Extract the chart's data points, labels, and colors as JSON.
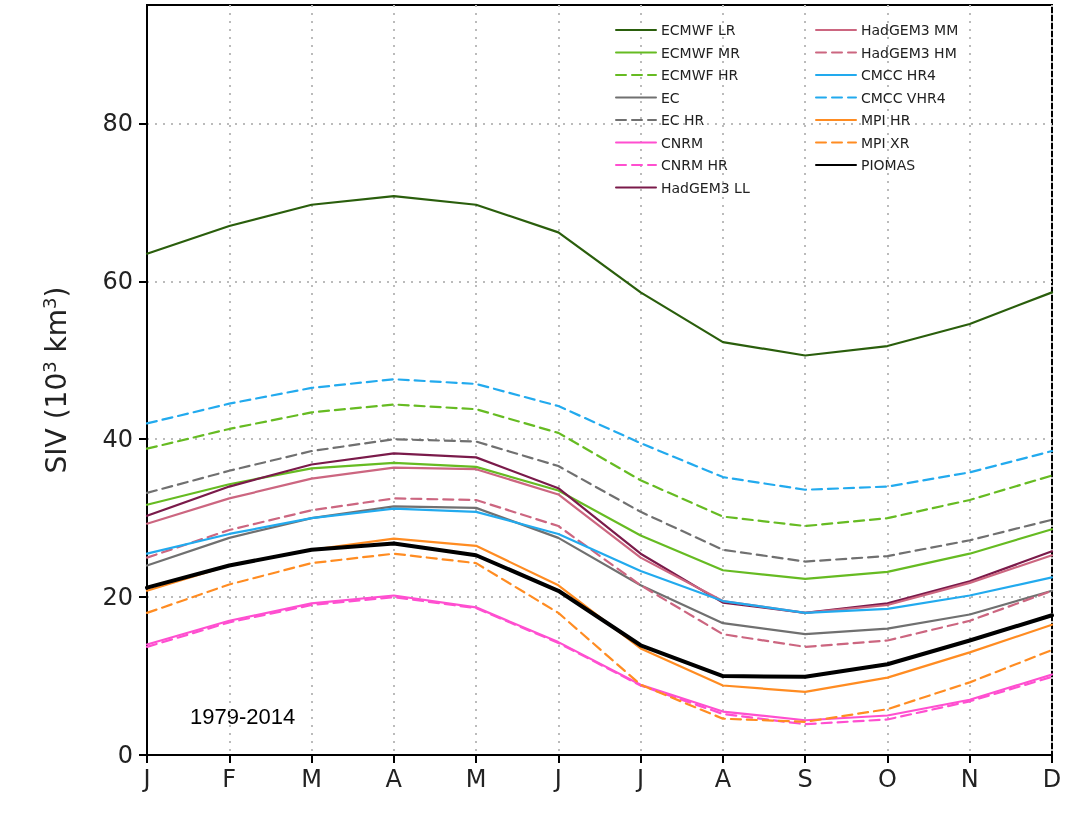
{
  "chart_data": {
    "type": "line",
    "ylabel": "SIV (10$^{3}$ km$^{3}$)",
    "categories": [
      "J",
      "F",
      "M",
      "A",
      "M",
      "J",
      "J",
      "A",
      "S",
      "O",
      "N",
      "D"
    ],
    "ylim": [
      0,
      95
    ],
    "yticks": [
      0,
      20,
      40,
      60,
      80
    ],
    "grid": true,
    "legend": "top right",
    "marker": "none",
    "annotations": [
      "1979-2014"
    ],
    "series": [
      {
        "name": "ECMWF LR",
        "color": "#2a5e0c",
        "line_style": "solid",
        "values": [
          63.5,
          67,
          69.7,
          70.8,
          69.7,
          66.2,
          58.6,
          52.3,
          50.6,
          51.8,
          54.6,
          58.6
        ]
      },
      {
        "name": "ECMWF MR",
        "color": "#66bb22",
        "line_style": "solid",
        "values": [
          31.7,
          34.3,
          36.3,
          37,
          36.5,
          33.5,
          27.8,
          23.4,
          22.3,
          23.2,
          25.5,
          28.6
        ]
      },
      {
        "name": "ECMWF HR",
        "color": "#66bb22",
        "line_style": "dashed",
        "values": [
          38.8,
          41.3,
          43.4,
          44.4,
          43.8,
          40.8,
          34.8,
          30.2,
          29,
          30,
          32.3,
          35.4
        ]
      },
      {
        "name": "EC",
        "color": "#707070",
        "line_style": "solid",
        "values": [
          24,
          27.5,
          30,
          31.5,
          31.3,
          27.5,
          21.5,
          16.7,
          15.3,
          16,
          17.8,
          20.8
        ]
      },
      {
        "name": "EC HR",
        "color": "#707070",
        "line_style": "dashed",
        "values": [
          33.2,
          36,
          38.5,
          40,
          39.7,
          36.6,
          30.8,
          26,
          24.5,
          25.2,
          27.2,
          29.8
        ]
      },
      {
        "name": "CNRM",
        "color": "#ff4fd0",
        "line_style": "solid",
        "values": [
          14,
          17,
          19.2,
          20.2,
          18.7,
          14.3,
          8.9,
          5.5,
          4.4,
          5,
          7,
          10.2
        ]
      },
      {
        "name": "CNRM HR",
        "color": "#ff4fd0",
        "line_style": "dashed",
        "values": [
          13.7,
          16.8,
          19,
          20,
          18.6,
          14.2,
          8.8,
          5.2,
          3.9,
          4.5,
          6.8,
          9.9
        ]
      },
      {
        "name": "HadGEM3 LL",
        "color": "#7a1a4a",
        "line_style": "solid",
        "values": [
          30.3,
          34,
          36.8,
          38.2,
          37.7,
          33.8,
          25.5,
          19.3,
          18,
          19.2,
          22,
          25.8
        ]
      },
      {
        "name": "HadGEM3 MM",
        "color": "#cc6680",
        "line_style": "solid",
        "values": [
          29.3,
          32.5,
          35,
          36.4,
          36.2,
          33,
          25,
          19.5,
          18,
          19,
          21.8,
          25.3
        ]
      },
      {
        "name": "HadGEM3 HM",
        "color": "#cc6680",
        "line_style": "dashed",
        "values": [
          25,
          28.5,
          31,
          32.5,
          32.3,
          29,
          21.5,
          15.3,
          13.7,
          14.5,
          17,
          20.8
        ]
      },
      {
        "name": "CMCC HR4",
        "color": "#22aaee",
        "line_style": "solid",
        "values": [
          25.5,
          28,
          30,
          31.2,
          30.8,
          28,
          23.3,
          19.5,
          18,
          18.5,
          20.2,
          22.5
        ]
      },
      {
        "name": "CMCC VHR4",
        "color": "#22aaee",
        "line_style": "dashed",
        "values": [
          42,
          44.5,
          46.5,
          47.6,
          47,
          44.2,
          39.5,
          35.2,
          33.6,
          34,
          35.8,
          38.5
        ]
      },
      {
        "name": "MPI HR",
        "color": "#ff8c22",
        "line_style": "solid",
        "values": [
          20.8,
          24,
          26,
          27.4,
          26.5,
          21.5,
          13.5,
          8.8,
          8,
          9.8,
          13,
          16.5
        ]
      },
      {
        "name": "MPI XR",
        "color": "#ff8c22",
        "line_style": "dashed",
        "values": [
          18,
          21.6,
          24.3,
          25.5,
          24.3,
          18,
          8.9,
          4.6,
          4.2,
          5.8,
          9.2,
          13.3
        ]
      },
      {
        "name": "PIOMAS",
        "color": "#000000",
        "line_style": "solid",
        "values": [
          21.2,
          24,
          26,
          26.8,
          25.3,
          20.8,
          13.9,
          10,
          9.9,
          11.5,
          14.5,
          17.7
        ]
      }
    ]
  }
}
